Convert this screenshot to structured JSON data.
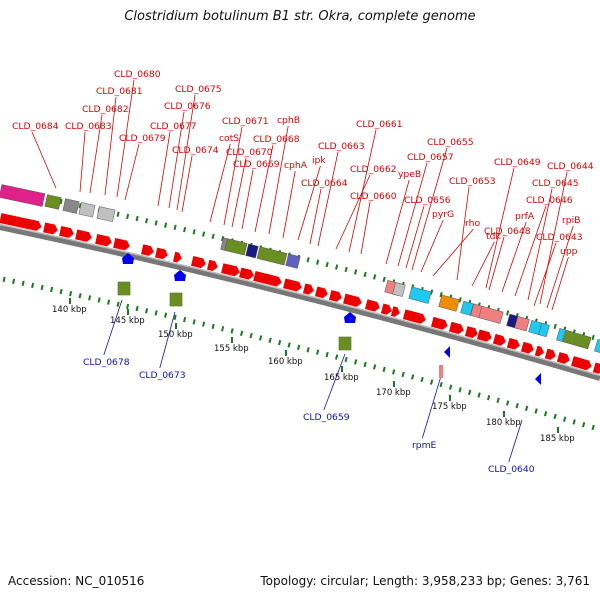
{
  "title": "Clostridium botulinum B1 str. Okra, complete genome",
  "footer": {
    "accession": "Accession: NC_010516",
    "topology": "Topology: circular; Length: 3,958,233 bp; Genes: 3,761"
  },
  "scale_labels": [
    "140 kbp",
    "145 kbp",
    "150 kbp",
    "155 kbp",
    "160 kbp",
    "165 kbp",
    "170 kbp",
    "175 kbp",
    "180 kbp",
    "185 kbp"
  ],
  "upper_labels": [
    "CLD_0684",
    "CLD_0683",
    "CLD_0682",
    "CLD_0681",
    "CLD_0680",
    "CLD_0679",
    "CLD_0677",
    "CLD_0676",
    "CLD_0675",
    "CLD_0674",
    "cotS",
    "CLD_0671",
    "CLD_0670",
    "CLD_0669",
    "CLD_0668",
    "cphB",
    "cphA",
    "ipk",
    "CLD_0664",
    "CLD_0663",
    "CLD_0662",
    "CLD_0661",
    "CLD_0660",
    "ypeB",
    "CLD_0657",
    "CLD_0656",
    "CLD_0655",
    "pyrG",
    "rho",
    "CLD_0653",
    "tdk",
    "CLD_0649",
    "CLD_0648",
    "prfA",
    "CLD_0646",
    "CLD_0645",
    "CLD_0644",
    "CLD_0643",
    "rpiB",
    "upp"
  ],
  "lower_labels": [
    "CLD_0678",
    "CLD_0673",
    "CLD_0659",
    "rpmE",
    "CLD_0640"
  ],
  "colors": {
    "label_red": "#e00000",
    "label_blue": "#1010c0",
    "cds": "#ee0000",
    "backbone": "#888888",
    "dots": "#1a7a1a",
    "olive": "#6b8e23",
    "magenta": "#e0218a",
    "cyan": "#1ec8f0",
    "orange": "#f08c00",
    "salmon": "#f08080",
    "blue": "#0000ff",
    "grey": "#888888",
    "navy": "#1a1a80"
  }
}
